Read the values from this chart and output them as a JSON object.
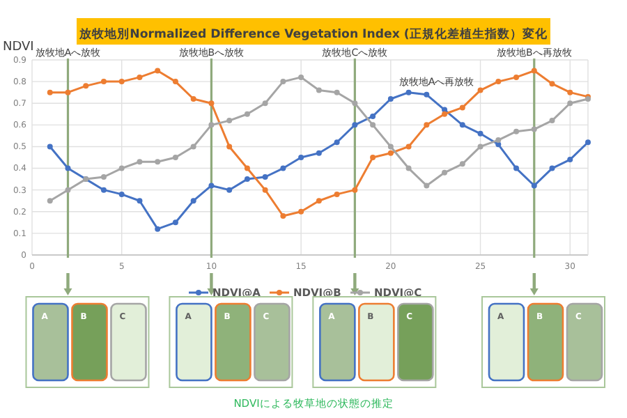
{
  "chart_data": [
    {
      "type": "line",
      "title": "放牧地別Normalized Difference Vegetation Index (正規化差植生指数）変化",
      "ylabel": "NDVI",
      "x": [
        1,
        2,
        3,
        4,
        5,
        6,
        7,
        8,
        9,
        10,
        11,
        12,
        13,
        14,
        15,
        16,
        17,
        18,
        19,
        20,
        21,
        22,
        23,
        24,
        25,
        26,
        27,
        28,
        29,
        30,
        31
      ],
      "series": [
        {
          "name": "NDVI@A",
          "color": "#4472c4",
          "values": [
            0.5,
            0.4,
            0.35,
            0.3,
            0.28,
            0.25,
            0.12,
            0.15,
            0.25,
            0.32,
            0.3,
            0.35,
            0.36,
            0.4,
            0.45,
            0.47,
            0.52,
            0.6,
            0.64,
            0.72,
            0.75,
            0.74,
            0.67,
            0.6,
            0.56,
            0.51,
            0.4,
            0.32,
            0.4,
            0.44,
            0.52
          ]
        },
        {
          "name": "NDVI@B",
          "color": "#ed7d31",
          "values": [
            0.75,
            0.75,
            0.78,
            0.8,
            0.8,
            0.82,
            0.85,
            0.8,
            0.72,
            0.7,
            0.5,
            0.4,
            0.3,
            0.18,
            0.2,
            0.25,
            0.28,
            0.3,
            0.45,
            0.47,
            0.5,
            0.6,
            0.65,
            0.68,
            0.76,
            0.8,
            0.82,
            0.85,
            0.79,
            0.75,
            0.73
          ]
        },
        {
          "name": "NDVI@C",
          "color": "#a5a5a5",
          "values": [
            0.25,
            0.3,
            0.35,
            0.36,
            0.4,
            0.43,
            0.43,
            0.45,
            0.5,
            0.6,
            0.62,
            0.65,
            0.7,
            0.8,
            0.82,
            0.76,
            0.75,
            0.7,
            0.6,
            0.5,
            0.4,
            0.32,
            0.38,
            0.42,
            0.5,
            0.53,
            0.57,
            0.58,
            0.62,
            0.7,
            0.72
          ]
        }
      ],
      "xlim": [
        0,
        31
      ],
      "xticks": [
        0,
        5,
        10,
        15,
        20,
        25,
        30
      ],
      "ylim": [
        0,
        0.9
      ],
      "yticks": [
        0,
        0.1,
        0.2,
        0.3,
        0.4,
        0.5,
        0.6,
        0.7,
        0.8,
        0.9
      ],
      "grid": true,
      "legend": "bottom",
      "marker": "circle",
      "ref_lines": [
        {
          "axis": "x",
          "value": 2,
          "color": "#8faa7c",
          "label": "放牧地Aへ放牧"
        },
        {
          "axis": "x",
          "value": 10,
          "color": "#8faa7c",
          "label": "放牧地Bへ放牧"
        },
        {
          "axis": "x",
          "value": 18,
          "color": "#8faa7c",
          "label": "放牧地Cへ放牧"
        },
        {
          "axis": "x",
          "value": 28,
          "color": "#8faa7c",
          "label": "放牧地Bへ再放牧"
        }
      ],
      "annotations": [
        "放牧地Aへ再放牧"
      ]
    },
    {
      "type": "other",
      "title": "NDVIによる牧草地の状態の推定",
      "categories": [
        "A",
        "B",
        "C"
      ]
    }
  ]
}
